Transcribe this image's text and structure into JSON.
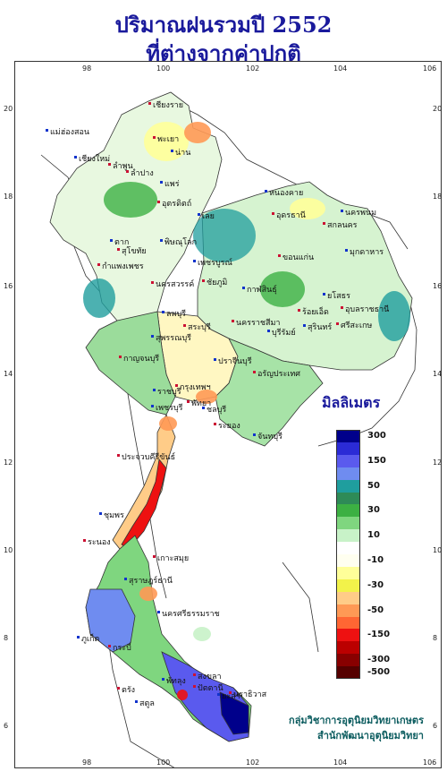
{
  "title_line1": "ปริมาณฝนรวมปี 2552",
  "title_line2": "ที่ต่างจากค่าปกติ",
  "legend": {
    "title": "มิลลิเมตร",
    "classes": [
      {
        "color": "#00008b",
        "label": "300"
      },
      {
        "color": "#2b2bd6",
        "label": ""
      },
      {
        "color": "#5a5aee",
        "label": "150"
      },
      {
        "color": "#6f8cf0",
        "label": ""
      },
      {
        "color": "#1f9e9e",
        "label": "50"
      },
      {
        "color": "#2e8b57",
        "label": ""
      },
      {
        "color": "#3cb043",
        "label": "30"
      },
      {
        "color": "#7fd67f",
        "label": ""
      },
      {
        "color": "#c8f2c8",
        "label": "10"
      },
      {
        "color": "#ffffff",
        "label": ""
      },
      {
        "color": "#fffff0",
        "label": "-10"
      },
      {
        "color": "#ffff99",
        "label": ""
      },
      {
        "color": "#f2f24a",
        "label": "-30"
      },
      {
        "color": "#ffcc88",
        "label": ""
      },
      {
        "color": "#ff9955",
        "label": "-50"
      },
      {
        "color": "#ff6633",
        "label": ""
      },
      {
        "color": "#ee1111",
        "label": "-150"
      },
      {
        "color": "#bb0000",
        "label": ""
      },
      {
        "color": "#880000",
        "label": "-300"
      },
      {
        "color": "#550000",
        "label": "-500"
      }
    ]
  },
  "axes": {
    "lon_ticks": [
      "98",
      "100",
      "102",
      "104",
      "106"
    ],
    "lat_ticks": [
      "20",
      "18",
      "16",
      "14",
      "12",
      "10",
      "8",
      "6"
    ]
  },
  "places": [
    "เชียงราย",
    "แม่ฮ่องสอน",
    "พะเยา",
    "เชียงใหม่",
    "ลำพูน",
    "น่าน",
    "ลำปาง",
    "แพร่",
    "อุตรดิตถ์",
    "ตาก",
    "สุโขทัย",
    "พิษณุโลก",
    "กำแพงเพชร",
    "เพชรบูรณ์",
    "นครสวรรค์",
    "หนองคาย",
    "อุดรธานี",
    "นครพนม",
    "สกลนคร",
    "เลย",
    "ขอนแก่น",
    "มุกดาหาร",
    "ชัยภูมิ",
    "กาฬสินธุ์",
    "นครราชสีมา",
    "บุรีรัมย์",
    "ร้อยเอ็ด",
    "ยโสธร",
    "อุบลราชธานี",
    "สุรินทร์",
    "ศรีสะเกษ",
    "ลพบุรี",
    "สระบุรี",
    "สุพรรณบุรี",
    "กาญจนบุรี",
    "ปราจีนบุรี",
    "อรัญประเทศ",
    "ราชบุรี",
    "กรุงเทพฯ",
    "ชลบุรี",
    "ระยอง",
    "จันทบุรี",
    "พัทยา",
    "เพชรบุรี",
    "ประจวบคีรีขันธ์",
    "ชุมพร",
    "ระนอง",
    "สุราษฎร์ธานี",
    "เกาะสมุย",
    "นครศรีธรรมราช",
    "กระบี่",
    "ภูเก็ต",
    "ตรัง",
    "พัทลุง",
    "สงขลา",
    "สตูล",
    "ปัตตานี",
    "ยะลา",
    "นราธิวาส"
  ],
  "credit_line1": "กลุ่มวิชาการอุตุนิยมวิทยาเกษตร",
  "credit_line2": "สำนักพัฒนาอุตุนิยมวิทยา"
}
